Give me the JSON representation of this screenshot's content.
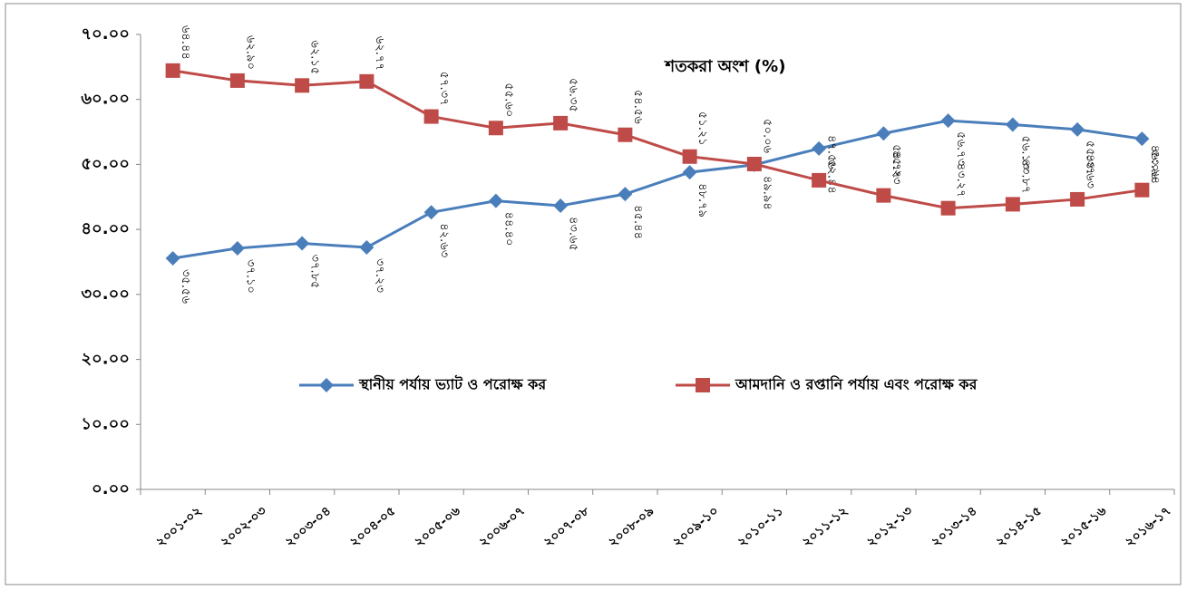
{
  "chart_data": {
    "type": "line",
    "title": "শতকরা অংশ (%)",
    "categories": [
      "২০০১-০২",
      "২০০২-০৩",
      "২০০৩-০৪",
      "২০০৪-০৫",
      "২০০৫-০৬",
      "২০০৬-০৭",
      "২০০৭-০৮",
      "২০০৮-০৯",
      "২০০৯-১০",
      "২০১০-১১",
      "২০১১-১২",
      "২০১২-১৩",
      "২০১৩-১৪",
      "২০১৪-১৫",
      "২০১৫-১৬",
      "২০১৬-১৭"
    ],
    "series": [
      {
        "name": "স্থানীয়  পর্যায় ভ্যাট ও পরোক্ষ কর",
        "color": "#4a7ebb",
        "marker": "diamond",
        "values": [
          35.56,
          37.1,
          37.85,
          37.23,
          42.63,
          44.4,
          43.65,
          45.44,
          48.79,
          49.94,
          52.44,
          54.77,
          56.73,
          56.13,
          55.37,
          53.94
        ],
        "value_labels": [
          "৩৫.৫৬",
          "৩৭.১০",
          "৩৭.৮৫",
          "৩৭.২৩",
          "৪২.৬৩",
          "৪৪.৪০",
          "৪৩.৬৫",
          "৪৫.৪৪",
          "৪৮.৭৯",
          "৪৯.৯৪",
          "৫২.৪৪",
          "৫৪.৭৭",
          "৫৬.৭৩",
          "৫৬.১৩",
          "৫৫.৩৭",
          "৫৩.৯৪"
        ]
      },
      {
        "name": "আমদানি ও রপ্তানি পর্যায় এবং পরোক্ষ কর",
        "color": "#be4b48",
        "marker": "square",
        "values": [
          64.44,
          62.9,
          62.15,
          62.77,
          57.37,
          55.6,
          56.35,
          54.56,
          51.21,
          50.06,
          47.56,
          45.23,
          43.27,
          43.87,
          44.63,
          46.06
        ],
        "value_labels": [
          "৬৪.৪৪",
          "৬২.৯০",
          "৬২.১৫",
          "৬২.৭৭",
          "৫৭.৩৭",
          "৫৫.৬০",
          "৫৬.৩৫",
          "৫৪.৫৬",
          "৫১.২১",
          "৫০.০৬",
          "৪৭.৫৬",
          "৪৫.২৩",
          "৪৩.২৭",
          "৪৩.৮৭",
          "৪৪.৬৩",
          "৪৬.০৬"
        ]
      }
    ],
    "ylim": [
      0,
      70
    ],
    "yticks": [
      {
        "value": 0,
        "label": "০.০০"
      },
      {
        "value": 10,
        "label": "১০.০০"
      },
      {
        "value": 20,
        "label": "২০.০০"
      },
      {
        "value": 30,
        "label": "৩০.০০"
      },
      {
        "value": 40,
        "label": "৪০.০০"
      },
      {
        "value": 50,
        "label": "৫০.০০"
      },
      {
        "value": 60,
        "label": "৬০.০০"
      },
      {
        "value": 70,
        "label": "৭০.০০"
      }
    ],
    "grid": false
  }
}
